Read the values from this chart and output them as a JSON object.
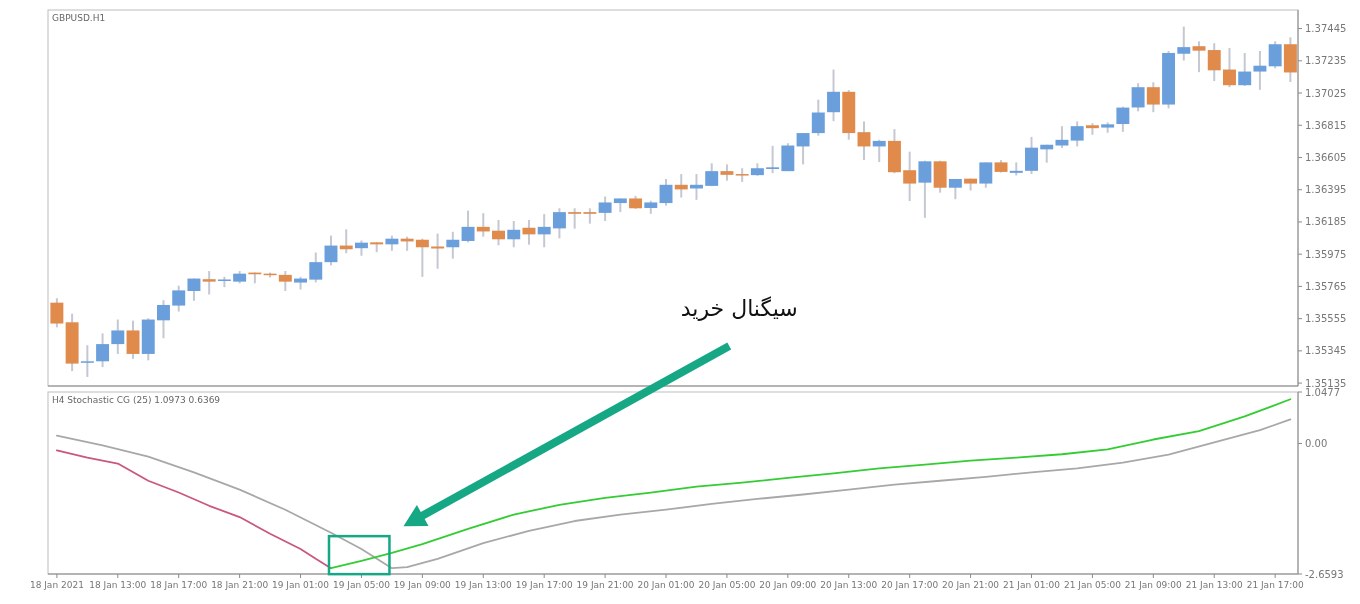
{
  "chart_data": [
    {
      "type": "candlestick",
      "title": "GBPUSD.H1",
      "tick_labels": "y",
      "xlim": [
        "2021-01-18T08:25",
        "2021-01-21T18:30"
      ],
      "ylim": [
        1.35116,
        1.37566
      ],
      "yticks": [
        1.35135,
        1.35345,
        1.35555,
        1.35765,
        1.35975,
        1.36185,
        1.36395,
        1.36605,
        1.36815,
        1.37025,
        1.37235,
        1.37445
      ],
      "annotations": [
        "سیگنال خرید"
      ],
      "x": [
        "2021-01-18T09:00",
        "2021-01-18T10:00",
        "2021-01-18T11:00",
        "2021-01-18T12:00",
        "2021-01-18T13:00",
        "2021-01-18T14:00",
        "2021-01-18T15:00",
        "2021-01-18T16:00",
        "2021-01-18T17:00",
        "2021-01-18T18:00",
        "2021-01-18T19:00",
        "2021-01-18T20:00",
        "2021-01-18T21:00",
        "2021-01-18T22:00",
        "2021-01-18T23:00",
        "2021-01-19T00:00",
        "2021-01-19T01:00",
        "2021-01-19T02:00",
        "2021-01-19T03:00",
        "2021-01-19T04:00",
        "2021-01-19T05:00",
        "2021-01-19T06:00",
        "2021-01-19T07:00",
        "2021-01-19T08:00",
        "2021-01-19T09:00",
        "2021-01-19T10:00",
        "2021-01-19T11:00",
        "2021-01-19T12:00",
        "2021-01-19T13:00",
        "2021-01-19T14:00",
        "2021-01-19T15:00",
        "2021-01-19T16:00",
        "2021-01-19T17:00",
        "2021-01-19T18:00",
        "2021-01-19T19:00",
        "2021-01-19T20:00",
        "2021-01-19T21:00",
        "2021-01-19T22:00",
        "2021-01-19T23:00",
        "2021-01-20T00:00",
        "2021-01-20T01:00",
        "2021-01-20T02:00",
        "2021-01-20T03:00",
        "2021-01-20T04:00",
        "2021-01-20T05:00",
        "2021-01-20T06:00",
        "2021-01-20T07:00",
        "2021-01-20T08:00",
        "2021-01-20T09:00",
        "2021-01-20T10:00",
        "2021-01-20T11:00",
        "2021-01-20T12:00",
        "2021-01-20T13:00",
        "2021-01-20T14:00",
        "2021-01-20T15:00",
        "2021-01-20T16:00",
        "2021-01-20T17:00",
        "2021-01-20T18:00",
        "2021-01-20T19:00",
        "2021-01-20T20:00",
        "2021-01-20T21:00",
        "2021-01-20T22:00",
        "2021-01-20T23:00",
        "2021-01-21T00:00",
        "2021-01-21T01:00",
        "2021-01-21T02:00",
        "2021-01-21T03:00",
        "2021-01-21T04:00",
        "2021-01-21T05:00",
        "2021-01-21T06:00",
        "2021-01-21T07:00",
        "2021-01-21T08:00",
        "2021-01-21T09:00",
        "2021-01-21T10:00",
        "2021-01-21T11:00",
        "2021-01-21T12:00",
        "2021-01-21T13:00",
        "2021-01-21T14:00",
        "2021-01-21T15:00",
        "2021-01-21T16:00",
        "2021-01-21T17:00",
        "2021-01-21T18:00"
      ],
      "ohlc": [
        [
          1.35659,
          1.35688,
          1.35498,
          1.35523
        ],
        [
          1.35531,
          1.35587,
          1.35213,
          1.35262
        ],
        [
          1.35273,
          1.35382,
          1.35175,
          1.35277
        ],
        [
          1.35277,
          1.35459,
          1.35239,
          1.35389
        ],
        [
          1.35389,
          1.35549,
          1.35325,
          1.35478
        ],
        [
          1.35478,
          1.35542,
          1.35293,
          1.35325
        ],
        [
          1.35325,
          1.35557,
          1.35283,
          1.35549
        ],
        [
          1.35544,
          1.35675,
          1.35427,
          1.35644
        ],
        [
          1.3564,
          1.3577,
          1.35601,
          1.35739
        ],
        [
          1.35735,
          1.35816,
          1.35671,
          1.35816
        ],
        [
          1.35812,
          1.35865,
          1.35712,
          1.35796
        ],
        [
          1.35806,
          1.35827,
          1.3576,
          1.3581
        ],
        [
          1.35796,
          1.35865,
          1.35785,
          1.35848
        ],
        [
          1.35855,
          1.35855,
          1.35785,
          1.35844
        ],
        [
          1.35848,
          1.35855,
          1.35823,
          1.35838
        ],
        [
          1.3584,
          1.35865,
          1.35735,
          1.35796
        ],
        [
          1.3579,
          1.35827,
          1.35745,
          1.35816
        ],
        [
          1.35809,
          1.35986,
          1.35791,
          1.35923
        ],
        [
          1.35923,
          1.36096,
          1.35902,
          1.36031
        ],
        [
          1.36031,
          1.36137,
          1.35981,
          1.36007
        ],
        [
          1.36014,
          1.36064,
          1.35965,
          1.3605
        ],
        [
          1.36052,
          1.36052,
          1.35988,
          1.36039
        ],
        [
          1.36039,
          1.36096,
          1.35997,
          1.36076
        ],
        [
          1.36076,
          1.36089,
          1.35997,
          1.36058
        ],
        [
          1.36069,
          1.36076,
          1.35827,
          1.3602
        ],
        [
          1.36025,
          1.36109,
          1.3588,
          1.36012
        ],
        [
          1.3602,
          1.36121,
          1.35946,
          1.36069
        ],
        [
          1.36061,
          1.36259,
          1.36052,
          1.36153
        ],
        [
          1.36153,
          1.36242,
          1.36089,
          1.36123
        ],
        [
          1.36128,
          1.36198,
          1.36033,
          1.36072
        ],
        [
          1.36072,
          1.36191,
          1.3602,
          1.36134
        ],
        [
          1.36147,
          1.36198,
          1.36037,
          1.36104
        ],
        [
          1.36104,
          1.36236,
          1.3602,
          1.36153
        ],
        [
          1.36143,
          1.36274,
          1.36078,
          1.36249
        ],
        [
          1.36249,
          1.36274,
          1.36141,
          1.36238
        ],
        [
          1.36249,
          1.36274,
          1.36174,
          1.36238
        ],
        [
          1.36244,
          1.36351,
          1.36191,
          1.36312
        ],
        [
          1.36308,
          1.36338,
          1.36249,
          1.36338
        ],
        [
          1.36338,
          1.36355,
          1.3627,
          1.36274
        ],
        [
          1.36276,
          1.36323,
          1.36238,
          1.36312
        ],
        [
          1.36308,
          1.36465,
          1.36291,
          1.36427
        ],
        [
          1.36427,
          1.36497,
          1.36344,
          1.36397
        ],
        [
          1.36403,
          1.36497,
          1.36329,
          1.36427
        ],
        [
          1.3642,
          1.36567,
          1.36418,
          1.36516
        ],
        [
          1.36516,
          1.3656,
          1.36454,
          1.36492
        ],
        [
          1.36497,
          1.36535,
          1.36446,
          1.36492
        ],
        [
          1.3649,
          1.36567,
          1.36486,
          1.36535
        ],
        [
          1.3653,
          1.36681,
          1.36503,
          1.36541
        ],
        [
          1.36516,
          1.36698,
          1.36516,
          1.36683
        ],
        [
          1.36677,
          1.36764,
          1.3656,
          1.36764
        ],
        [
          1.36764,
          1.36982,
          1.36747,
          1.36898
        ],
        [
          1.369,
          1.37178,
          1.36842,
          1.37033
        ],
        [
          1.37033,
          1.37044,
          1.36721,
          1.36764
        ],
        [
          1.3677,
          1.3684,
          1.36588,
          1.36677
        ],
        [
          1.36677,
          1.3672,
          1.36575,
          1.36713
        ],
        [
          1.36713,
          1.3679,
          1.36503,
          1.36509
        ],
        [
          1.36522,
          1.36643,
          1.36321,
          1.36435
        ],
        [
          1.36441,
          1.36584,
          1.36212,
          1.3658
        ],
        [
          1.3658,
          1.36584,
          1.36376,
          1.36408
        ],
        [
          1.36408,
          1.36465,
          1.36333,
          1.36465
        ],
        [
          1.36467,
          1.36467,
          1.3639,
          1.36435
        ],
        [
          1.36435,
          1.36573,
          1.36408,
          1.36573
        ],
        [
          1.36573,
          1.36588,
          1.36507,
          1.36511
        ],
        [
          1.36505,
          1.36573,
          1.36488,
          1.36518
        ],
        [
          1.36518,
          1.36739,
          1.36497,
          1.36669
        ],
        [
          1.36658,
          1.36688,
          1.36571,
          1.36688
        ],
        [
          1.36683,
          1.36809,
          1.36667,
          1.3672
        ],
        [
          1.36715,
          1.3684,
          1.36677,
          1.36809
        ],
        [
          1.36815,
          1.36828,
          1.36753,
          1.36796
        ],
        [
          1.368,
          1.36834,
          1.36766,
          1.36821
        ],
        [
          1.36823,
          1.36936,
          1.36772,
          1.3693
        ],
        [
          1.36931,
          1.37089,
          1.36906,
          1.37063
        ],
        [
          1.37063,
          1.37095,
          1.369,
          1.3695
        ],
        [
          1.3695,
          1.37299,
          1.36925,
          1.37286
        ],
        [
          1.37281,
          1.37458,
          1.37237,
          1.37324
        ],
        [
          1.3733,
          1.37362,
          1.37161,
          1.37301
        ],
        [
          1.37305,
          1.3735,
          1.37103,
          1.37173
        ],
        [
          1.37178,
          1.37318,
          1.37063,
          1.37076
        ],
        [
          1.37076,
          1.37286,
          1.37071,
          1.37165
        ],
        [
          1.37165,
          1.37299,
          1.37046,
          1.37203
        ],
        [
          1.37199,
          1.37362,
          1.37186,
          1.37343
        ],
        [
          1.37343,
          1.37388,
          1.37097,
          1.37159
        ]
      ],
      "colors": [
        "#e08a4c",
        "#e08a4c",
        "#6a9fdc",
        "#6a9fdc",
        "#6a9fdc",
        "#e08a4c",
        "#6a9fdc",
        "#6a9fdc",
        "#6a9fdc",
        "#6a9fdc",
        "#e08a4c",
        "#6a9fdc",
        "#6a9fdc",
        "#e08a4c",
        "#e08a4c",
        "#e08a4c",
        "#6a9fdc",
        "#6a9fdc",
        "#6a9fdc",
        "#e08a4c",
        "#6a9fdc",
        "#e08a4c",
        "#6a9fdc",
        "#e08a4c",
        "#e08a4c",
        "#e08a4c",
        "#6a9fdc",
        "#6a9fdc",
        "#e08a4c",
        "#e08a4c",
        "#6a9fdc",
        "#e08a4c",
        "#6a9fdc",
        "#6a9fdc",
        "#e08a4c",
        "#e08a4c",
        "#6a9fdc",
        "#6a9fdc",
        "#e08a4c",
        "#6a9fdc",
        "#6a9fdc",
        "#e08a4c",
        "#6a9fdc",
        "#6a9fdc",
        "#e08a4c",
        "#e08a4c",
        "#6a9fdc",
        "#6a9fdc",
        "#6a9fdc",
        "#6a9fdc",
        "#6a9fdc",
        "#6a9fdc",
        "#e08a4c",
        "#e08a4c",
        "#6a9fdc",
        "#e08a4c",
        "#e08a4c",
        "#6a9fdc",
        "#e08a4c",
        "#6a9fdc",
        "#e08a4c",
        "#6a9fdc",
        "#e08a4c",
        "#6a9fdc",
        "#6a9fdc",
        "#6a9fdc",
        "#6a9fdc",
        "#6a9fdc",
        "#e08a4c",
        "#6a9fdc",
        "#6a9fdc",
        "#6a9fdc",
        "#e08a4c",
        "#6a9fdc",
        "#6a9fdc",
        "#e08a4c",
        "#e08a4c",
        "#e08a4c",
        "#6a9fdc",
        "#6a9fdc",
        "#6a9fdc",
        "#e08a4c"
      ]
    },
    {
      "type": "line",
      "title": "H4 Stochastic CG (25) 1.0973 0.6369",
      "xlim": [
        "2021-01-18T08:25",
        "2021-01-21T18:30"
      ],
      "xticks": [
        {
          "value": "2021-01-18T09:00",
          "label": "18 Jan 2021"
        },
        {
          "value": "2021-01-18T13:00",
          "label": "18 Jan 13:00"
        },
        {
          "value": "2021-01-18T17:00",
          "label": "18 Jan 17:00"
        },
        {
          "value": "2021-01-18T21:00",
          "label": "18 Jan 21:00"
        },
        {
          "value": "2021-01-19T01:00",
          "label": "19 Jan 01:00"
        },
        {
          "value": "2021-01-19T05:00",
          "label": "19 Jan 05:00"
        },
        {
          "value": "2021-01-19T09:00",
          "label": "19 Jan 09:00"
        },
        {
          "value": "2021-01-19T13:00",
          "label": "19 Jan 13:00"
        },
        {
          "value": "2021-01-19T17:00",
          "label": "19 Jan 17:00"
        },
        {
          "value": "2021-01-19T21:00",
          "label": "19 Jan 21:00"
        },
        {
          "value": "2021-01-20T01:00",
          "label": "20 Jan 01:00"
        },
        {
          "value": "2021-01-20T05:00",
          "label": "20 Jan 05:00"
        },
        {
          "value": "2021-01-20T09:00",
          "label": "20 Jan 09:00"
        },
        {
          "value": "2021-01-20T13:00",
          "label": "20 Jan 13:00"
        },
        {
          "value": "2021-01-20T17:00",
          "label": "20 Jan 17:00"
        },
        {
          "value": "2021-01-20T21:00",
          "label": "20 Jan 21:00"
        },
        {
          "value": "2021-01-21T01:00",
          "label": "21 Jan 01:00"
        },
        {
          "value": "2021-01-21T05:00",
          "label": "21 Jan 05:00"
        },
        {
          "value": "2021-01-21T09:00",
          "label": "21 Jan 09:00"
        },
        {
          "value": "2021-01-21T13:00",
          "label": "21 Jan 13:00"
        },
        {
          "value": "2021-01-21T17:00",
          "label": "21 Jan 17:00"
        }
      ],
      "ylim": [
        -2.6593,
        1.0477
      ],
      "yticks": [
        -2.6593,
        {
          "value": 0,
          "label": "0.00"
        },
        1.0477
      ],
      "series": [
        {
          "color": "#a8a8a8",
          "x": [
            "2021-01-18T09:00",
            "2021-01-18T12:00",
            "2021-01-18T15:00",
            "2021-01-18T18:00",
            "2021-01-18T21:00",
            "2021-01-19T00:00",
            "2021-01-19T03:00",
            "2021-01-19T05:00",
            "2021-01-19T07:00",
            "2021-01-19T08:00",
            "2021-01-19T10:00",
            "2021-01-19T13:00",
            "2021-01-19T16:00",
            "2021-01-19T19:00",
            "2021-01-19T22:00",
            "2021-01-20T01:00",
            "2021-01-20T04:00",
            "2021-01-20T07:00",
            "2021-01-20T10:00",
            "2021-01-20T13:00",
            "2021-01-20T16:00",
            "2021-01-20T19:00",
            "2021-01-20T22:00",
            "2021-01-21T01:00",
            "2021-01-21T04:00",
            "2021-01-21T07:00",
            "2021-01-21T10:00",
            "2021-01-21T13:00",
            "2021-01-21T16:00",
            "2021-01-21T18:00"
          ],
          "values": [
            0.16,
            -0.04,
            -0.27,
            -0.59,
            -0.94,
            -1.35,
            -1.82,
            -2.15,
            -2.54,
            -2.52,
            -2.35,
            -2.03,
            -1.78,
            -1.58,
            -1.45,
            -1.35,
            -1.23,
            -1.13,
            -1.04,
            -0.94,
            -0.84,
            -0.76,
            -0.68,
            -0.59,
            -0.51,
            -0.39,
            -0.23,
            0.02,
            0.27,
            0.49
          ]
        },
        {
          "color": "#c9577f",
          "x": [
            "2021-01-18T09:00",
            "2021-01-18T11:00",
            "2021-01-18T13:00",
            "2021-01-18T15:00",
            "2021-01-18T17:00",
            "2021-01-18T19:00",
            "2021-01-18T21:00",
            "2021-01-18T23:00",
            "2021-01-19T01:00",
            "2021-01-19T02:00",
            "2021-01-19T03:00"
          ],
          "values": [
            -0.14,
            -0.29,
            -0.41,
            -0.76,
            -1.0,
            -1.27,
            -1.5,
            -1.84,
            -2.15,
            -2.35,
            -2.54
          ]
        },
        {
          "color": "#33cc33",
          "x": [
            "2021-01-19T03:00",
            "2021-01-19T05:00",
            "2021-01-19T07:00",
            "2021-01-19T09:00",
            "2021-01-19T12:00",
            "2021-01-19T15:00",
            "2021-01-19T18:00",
            "2021-01-19T21:00",
            "2021-01-20T00:00",
            "2021-01-20T03:00",
            "2021-01-20T06:00",
            "2021-01-20T09:00",
            "2021-01-20T12:00",
            "2021-01-20T15:00",
            "2021-01-20T18:00",
            "2021-01-20T21:00",
            "2021-01-21T00:00",
            "2021-01-21T03:00",
            "2021-01-21T06:00",
            "2021-01-21T09:00",
            "2021-01-21T12:00",
            "2021-01-21T15:00",
            "2021-01-21T18:00"
          ],
          "values": [
            -2.54,
            -2.39,
            -2.23,
            -2.05,
            -1.74,
            -1.45,
            -1.25,
            -1.11,
            -1.0,
            -0.88,
            -0.8,
            -0.7,
            -0.61,
            -0.51,
            -0.43,
            -0.35,
            -0.29,
            -0.22,
            -0.12,
            0.08,
            0.25,
            0.55,
            0.9
          ]
        }
      ]
    }
  ]
}
